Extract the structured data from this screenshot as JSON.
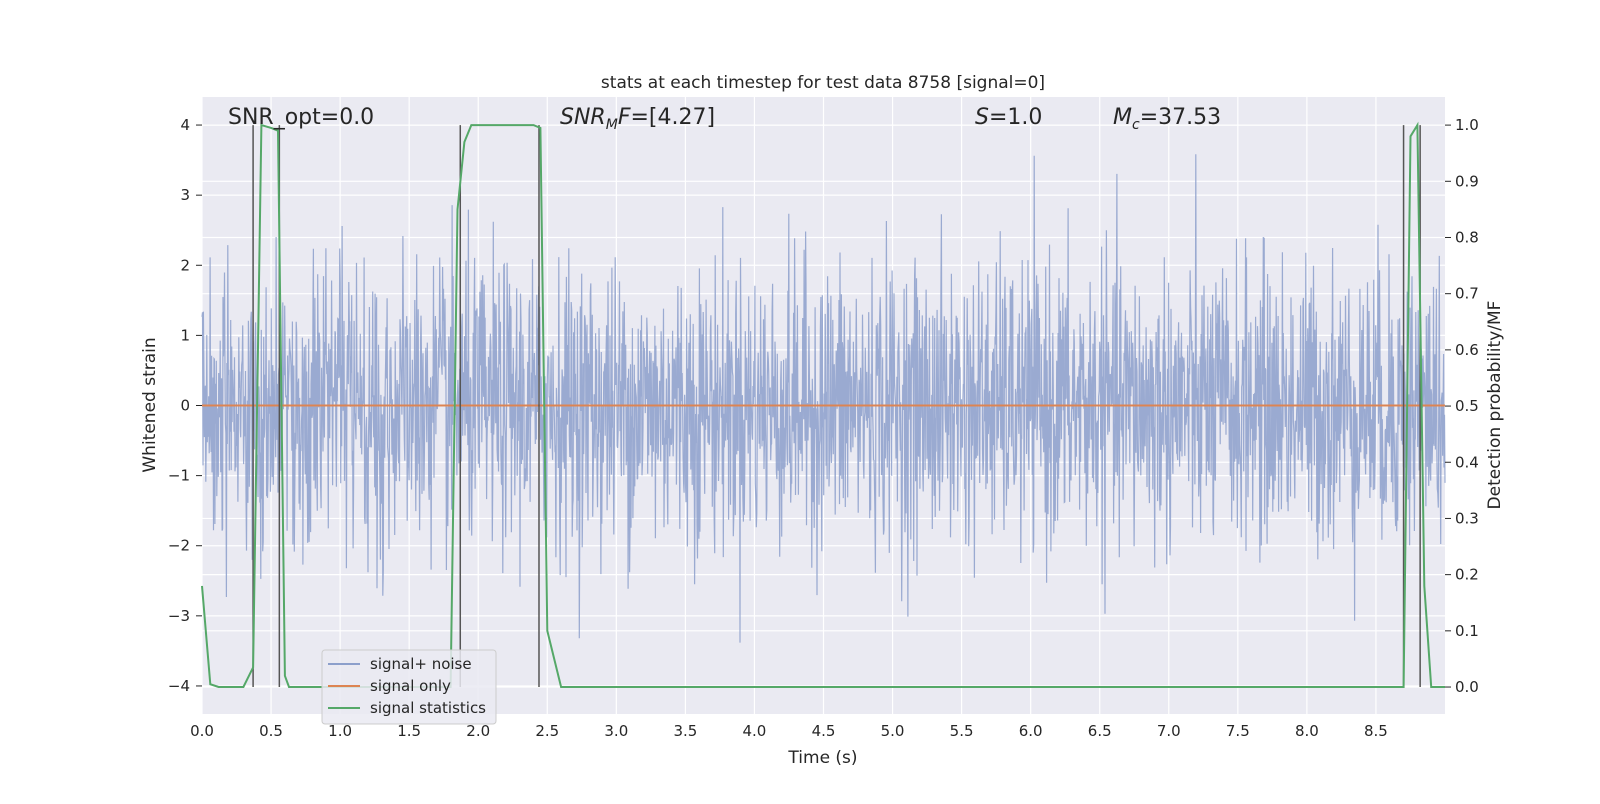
{
  "chart_data": {
    "type": "line",
    "title": "stats at each timestep for test data 8758 [signal=0]",
    "xlabel": "Time (s)",
    "ylabel_left": "Whitened strain",
    "ylabel_right": "Detection probability/MF",
    "xlim": [
      0.0,
      9.0
    ],
    "ylim_left": [
      -4.4,
      4.4
    ],
    "ylim_right": [
      -0.048,
      1.05
    ],
    "x_ticks": [
      0.0,
      0.5,
      1.0,
      1.5,
      2.0,
      2.5,
      3.0,
      3.5,
      4.0,
      4.5,
      5.0,
      5.5,
      6.0,
      6.5,
      7.0,
      7.5,
      8.0,
      8.5
    ],
    "x_tick_labels": [
      "0.0",
      "0.5",
      "1.0",
      "1.5",
      "2.0",
      "2.5",
      "3.0",
      "3.5",
      "4.0",
      "4.5",
      "5.0",
      "5.5",
      "6.0",
      "6.5",
      "7.0",
      "7.5",
      "8.0",
      "8.5"
    ],
    "y_left_ticks": [
      4,
      3,
      2,
      1,
      0,
      -1,
      -2,
      -3,
      -4
    ],
    "y_left_tick_labels": [
      "4",
      "3",
      "2",
      "1",
      "0",
      "−1",
      "−2",
      "−3",
      "−4"
    ],
    "y_right_ticks": [
      1.0,
      0.9,
      0.8,
      0.7,
      0.6,
      0.5,
      0.4,
      0.3,
      0.2,
      0.1,
      0.0
    ],
    "y_right_tick_labels": [
      "1.0",
      "0.9",
      "0.8",
      "0.7",
      "0.6",
      "0.5",
      "0.4",
      "0.3",
      "0.2",
      "0.1",
      "0.0"
    ],
    "grid": true,
    "legend_position": "lower-left",
    "annotations": {
      "snr_opt": "SNR_opt=0.0",
      "snr_mf": "[4.27]",
      "s_value": "1.0",
      "mc_value": "37.53"
    },
    "series": [
      {
        "name": "signal+ noise",
        "axis": "left",
        "color": "#8c9fcb",
        "description_type": "dense noise",
        "amplitude_std": 1.0,
        "x_range": [
          0.0,
          9.0
        ]
      },
      {
        "name": "signal only",
        "axis": "left",
        "color": "#dd8452",
        "x": [
          0.0,
          9.0
        ],
        "y": [
          0.0,
          0.0
        ]
      },
      {
        "name": "signal statistics",
        "axis": "right",
        "color": "#55a868",
        "x": [
          0.0,
          0.06,
          0.12,
          0.3,
          0.37,
          0.43,
          0.5,
          0.55,
          0.6,
          0.63,
          0.7,
          0.75,
          0.85,
          1.8,
          1.85,
          1.9,
          1.95,
          2.0,
          2.2,
          2.4,
          2.45,
          2.5,
          2.6,
          8.7,
          8.75,
          8.8,
          8.85,
          8.9,
          9.0
        ],
        "y": [
          0.18,
          0.005,
          0.0,
          0.0,
          0.035,
          1.0,
          0.995,
          0.99,
          0.02,
          0.0,
          0.0,
          0.0,
          0.0,
          0.0,
          0.85,
          0.97,
          1.0,
          1.0,
          1.0,
          1.0,
          0.995,
          0.1,
          0.0,
          0.0,
          0.98,
          1.0,
          0.18,
          0.0,
          0.0
        ]
      }
    ],
    "vertical_markers_x": [
      0.37,
      0.56,
      1.87,
      2.44,
      8.7,
      8.82
    ],
    "vertical_marker_color": "#555555"
  }
}
